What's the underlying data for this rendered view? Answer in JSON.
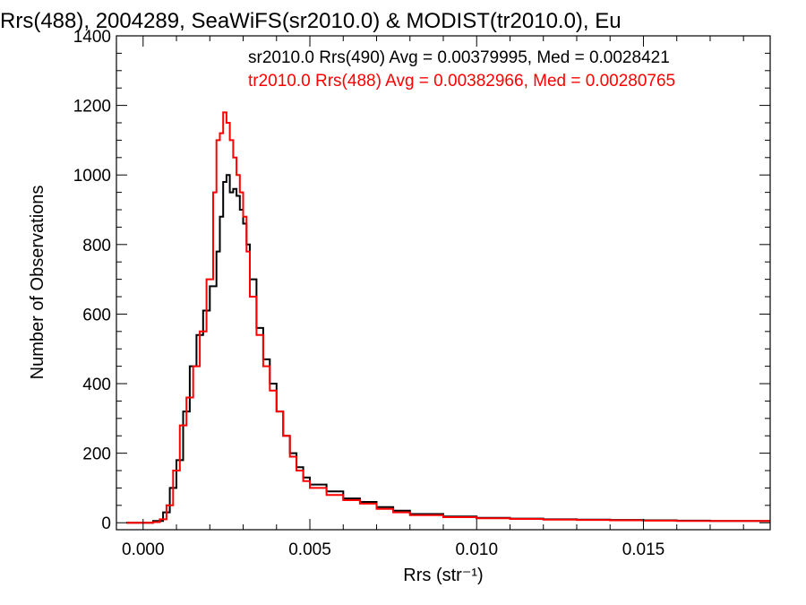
{
  "chart_data": {
    "type": "line",
    "step": true,
    "title": "Rrs(488), 2004289, SeaWiFS(sr2010.0) & MODIST(tr2010.0), Eu",
    "xlabel": "Rrs (str⁻¹)",
    "ylabel": "Number of Observations",
    "xlim": [
      -0.0008,
      0.0188
    ],
    "ylim": [
      -20,
      1400
    ],
    "xticks": [
      0.0,
      0.005,
      0.01,
      0.015
    ],
    "xtick_labels": [
      "0.000",
      "0.005",
      "0.010",
      "0.015"
    ],
    "yticks": [
      0,
      200,
      400,
      600,
      800,
      1000,
      1200,
      1400
    ],
    "ytick_labels": [
      "0",
      "200",
      "400",
      "600",
      "800",
      "1000",
      "1200",
      "1400"
    ],
    "grid": false,
    "legend_position": "top-right",
    "series": [
      {
        "name": "sr2010.0 Rrs(490) Avg = 0.00379995, Med = 0.0028421",
        "color": "#000000",
        "x": [
          -0.0005,
          0.0,
          0.0003,
          0.0006,
          0.0008,
          0.001,
          0.0012,
          0.0014,
          0.0016,
          0.0018,
          0.002,
          0.0022,
          0.0023,
          0.0024,
          0.0025,
          0.0026,
          0.0027,
          0.0028,
          0.0029,
          0.003,
          0.0031,
          0.0032,
          0.0034,
          0.0036,
          0.0038,
          0.004,
          0.0042,
          0.0044,
          0.0046,
          0.0048,
          0.005,
          0.0055,
          0.006,
          0.0065,
          0.007,
          0.0075,
          0.008,
          0.009,
          0.01,
          0.011,
          0.012,
          0.013,
          0.014,
          0.015,
          0.016,
          0.017,
          0.018,
          0.0188
        ],
        "y": [
          0,
          0,
          5,
          30,
          100,
          180,
          320,
          450,
          540,
          610,
          680,
          780,
          880,
          980,
          1000,
          950,
          960,
          940,
          900,
          860,
          800,
          700,
          560,
          470,
          400,
          320,
          250,
          200,
          160,
          130,
          110,
          90,
          70,
          60,
          45,
          35,
          25,
          18,
          14,
          12,
          10,
          9,
          8,
          7,
          6,
          5,
          5,
          5
        ]
      },
      {
        "name": "tr2010.0 Rrs(488) Avg = 0.00382966, Med = 0.00280765",
        "color": "#ff0000",
        "x": [
          -0.0005,
          0.0,
          0.0003,
          0.0005,
          0.0007,
          0.0009,
          0.0011,
          0.0013,
          0.0015,
          0.0017,
          0.0019,
          0.0021,
          0.0022,
          0.0023,
          0.0024,
          0.0025,
          0.0026,
          0.0027,
          0.0028,
          0.0029,
          0.003,
          0.0031,
          0.0032,
          0.0034,
          0.0036,
          0.0038,
          0.004,
          0.0042,
          0.0044,
          0.0046,
          0.0048,
          0.005,
          0.0055,
          0.006,
          0.0065,
          0.007,
          0.0075,
          0.008,
          0.009,
          0.01,
          0.011,
          0.012,
          0.013,
          0.014,
          0.015,
          0.016,
          0.017,
          0.018,
          0.0188
        ],
        "y": [
          0,
          0,
          2,
          10,
          50,
          150,
          280,
          360,
          450,
          550,
          700,
          950,
          1100,
          1120,
          1180,
          1150,
          1100,
          1050,
          1000,
          950,
          880,
          780,
          650,
          540,
          450,
          380,
          320,
          250,
          190,
          150,
          120,
          100,
          80,
          65,
          55,
          40,
          30,
          22,
          16,
          13,
          11,
          9,
          8,
          7,
          6,
          5,
          5,
          5,
          5
        ]
      }
    ]
  }
}
